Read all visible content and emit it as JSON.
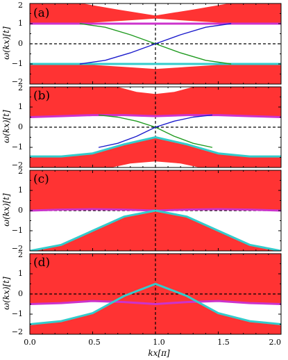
{
  "chart_data": [
    {
      "type": "area",
      "panel_label": "(a)",
      "ylabel": "ω(kx)[t]",
      "xlim": [
        0,
        2
      ],
      "ylim": [
        -2,
        2
      ],
      "yticks": [
        "2",
        "1",
        "0",
        "−1",
        "−2"
      ],
      "bands": [
        {
          "name": "",
          "color": "#ff3333",
          "x": [
            0,
            0.25,
            0.5,
            0.75,
            1.0,
            1.25,
            1.5,
            1.75,
            2.0
          ],
          "lower": [
            1.0,
            1.0,
            1.05,
            1.15,
            1.25,
            1.15,
            1.05,
            1.0,
            1.0
          ],
          "upper": [
            2,
            2,
            2,
            2,
            2,
            2,
            2,
            2,
            2
          ]
        },
        {
          "name": "",
          "color": "#ff3333",
          "x": [
            0,
            0.25,
            0.5,
            0.75,
            1.0,
            1.25,
            1.5,
            1.75,
            2.0
          ],
          "lower": [
            -2,
            -2,
            -2,
            -2,
            -2,
            -2,
            -2,
            -2,
            -2
          ],
          "upper": [
            -1.0,
            -1.0,
            -1.05,
            -1.15,
            -1.25,
            -1.15,
            -1.05,
            -1.0,
            -1.0
          ]
        }
      ],
      "white_regions": [
        {
          "x": [
            0.42,
            0.7,
            1.0,
            1.3,
            1.58
          ],
          "y": [
            2.0,
            1.7,
            1.4,
            1.7,
            2.0
          ]
        }
      ],
      "series": [
        {
          "name": "",
          "color": "#cc33cc",
          "x": [
            0,
            0.25,
            0.5,
            0.75,
            1.0,
            1.25,
            1.5,
            1.75,
            2.0
          ],
          "values": [
            1.0,
            1.0,
            1.0,
            1.0,
            1.0,
            1.0,
            1.0,
            1.0,
            1.0
          ]
        },
        {
          "name": "",
          "color": "#33cccc",
          "x": [
            0,
            0.25,
            0.5,
            0.75,
            1.0,
            1.25,
            1.5,
            1.75,
            2.0
          ],
          "values": [
            -1.0,
            -1.0,
            -1.0,
            -1.0,
            -1.0,
            -1.0,
            -1.0,
            -1.0,
            -1.0
          ]
        },
        {
          "name": "",
          "color": "#1f9a1f",
          "x": [
            0.4,
            0.6,
            0.8,
            1.0,
            1.2,
            1.4,
            1.6
          ],
          "values": [
            1.0,
            0.82,
            0.45,
            0.0,
            -0.45,
            -0.82,
            -1.0
          ]
        },
        {
          "name": "",
          "color": "#1a1acc",
          "x": [
            0.4,
            0.6,
            0.8,
            1.0,
            1.2,
            1.4,
            1.6
          ],
          "values": [
            -1.0,
            -0.82,
            -0.45,
            0.0,
            0.45,
            0.82,
            1.0
          ]
        }
      ]
    },
    {
      "type": "area",
      "panel_label": "(b)",
      "ylabel": "ω(kx)[t]",
      "xlim": [
        0,
        2
      ],
      "ylim": [
        -2,
        2
      ],
      "yticks": [
        "2",
        "1",
        "0",
        "−1",
        "−2"
      ],
      "bands": [
        {
          "name": "",
          "color": "#ff3333",
          "x": [
            0,
            0.25,
            0.5,
            0.75,
            1.0,
            1.25,
            1.5,
            1.75,
            2.0
          ],
          "lower": [
            0.5,
            0.55,
            0.6,
            0.6,
            0.55,
            0.6,
            0.6,
            0.55,
            0.5
          ],
          "upper": [
            2,
            2,
            2,
            2,
            2,
            2,
            2,
            2,
            2
          ]
        },
        {
          "name": "",
          "color": "#ff3333",
          "x": [
            0,
            0.25,
            0.5,
            0.75,
            1.0,
            1.25,
            1.5,
            1.75,
            2.0
          ],
          "lower": [
            -2,
            -2,
            -2,
            -2,
            -2,
            -2,
            -2,
            -2,
            -2
          ],
          "upper": [
            -1.45,
            -1.45,
            -1.3,
            -0.85,
            -0.5,
            -0.85,
            -1.3,
            -1.45,
            -1.45
          ]
        }
      ],
      "white_regions": [
        {
          "x": [
            0.7,
            0.85,
            1.0,
            1.15,
            1.3
          ],
          "y": [
            2.0,
            1.75,
            1.65,
            1.75,
            2.0
          ]
        },
        {
          "x": [
            0.65,
            0.8,
            1.0,
            1.2,
            1.35
          ],
          "y": [
            -2.0,
            -1.8,
            -1.7,
            -1.8,
            -2.0
          ]
        }
      ],
      "series": [
        {
          "name": "",
          "color": "#cc33cc",
          "x": [
            0,
            0.25,
            0.5,
            0.75,
            1.0,
            1.25,
            1.5,
            1.75,
            2.0
          ],
          "values": [
            0.5,
            0.55,
            0.6,
            0.6,
            0.55,
            0.6,
            0.6,
            0.55,
            0.5
          ]
        },
        {
          "name": "",
          "color": "#33cccc",
          "x": [
            0,
            0.25,
            0.5,
            0.75,
            1.0,
            1.25,
            1.5,
            1.75,
            2.0
          ],
          "values": [
            -1.45,
            -1.45,
            -1.3,
            -0.85,
            -0.5,
            -0.85,
            -1.3,
            -1.45,
            -1.45
          ]
        },
        {
          "name": "",
          "color": "#1f9a1f",
          "x": [
            0.55,
            0.7,
            0.85,
            1.0,
            1.15,
            1.3,
            1.45
          ],
          "values": [
            0.6,
            0.5,
            0.3,
            0.0,
            -0.45,
            -0.8,
            -1.0
          ]
        },
        {
          "name": "",
          "color": "#1a1acc",
          "x": [
            0.55,
            0.7,
            0.85,
            1.0,
            1.15,
            1.3,
            1.45
          ],
          "values": [
            -1.0,
            -0.8,
            -0.45,
            0.0,
            0.3,
            0.5,
            0.6
          ]
        }
      ]
    },
    {
      "type": "area",
      "panel_label": "(c)",
      "ylabel": "ω(kx)[t]",
      "xlim": [
        0,
        2
      ],
      "ylim": [
        -2,
        2
      ],
      "yticks": [
        "2",
        "1",
        "0",
        "−1",
        "−2"
      ],
      "bands": [
        {
          "name": "",
          "color": "#ff3333",
          "x": [
            0,
            0.25,
            0.5,
            0.75,
            1.0,
            1.25,
            1.5,
            1.75,
            2.0
          ],
          "lower": [
            0.0,
            0.05,
            0.07,
            0.05,
            0.0,
            0.05,
            0.07,
            0.05,
            0.0
          ],
          "upper": [
            2,
            2,
            2,
            2,
            2,
            2,
            2,
            2,
            2
          ]
        },
        {
          "name": "",
          "color": "#ff3333",
          "x": [
            0,
            0.25,
            0.5,
            0.75,
            1.0,
            1.25,
            1.5,
            1.75,
            2.0
          ],
          "lower": [
            -2,
            -2,
            -2,
            -2,
            -2,
            -2,
            -2,
            -2,
            -2
          ],
          "upper": [
            -2.0,
            -1.7,
            -1.0,
            -0.3,
            0.0,
            -0.3,
            -1.0,
            -1.7,
            -2.0
          ]
        }
      ],
      "white_regions": [],
      "series": [
        {
          "name": "",
          "color": "#cc33cc",
          "x": [
            0,
            0.25,
            0.5,
            0.75,
            1.0,
            1.25,
            1.5,
            1.75,
            2.0
          ],
          "values": [
            0.0,
            0.05,
            0.07,
            0.05,
            0.0,
            0.05,
            0.07,
            0.05,
            0.0
          ]
        },
        {
          "name": "",
          "color": "#33cccc",
          "x": [
            0,
            0.25,
            0.5,
            0.75,
            1.0,
            1.25,
            1.5,
            1.75,
            2.0
          ],
          "values": [
            -2.0,
            -1.7,
            -1.0,
            -0.3,
            0.0,
            -0.3,
            -1.0,
            -1.7,
            -2.0
          ]
        }
      ]
    },
    {
      "type": "area",
      "panel_label": "(d)",
      "ylabel": "ω(kx)[t]",
      "xlabel": "kx[π]",
      "xlim": [
        0,
        2
      ],
      "ylim": [
        -2,
        2
      ],
      "yticks": [
        "2",
        "1",
        "0",
        "−1",
        "−2"
      ],
      "xticks": [
        "0.0",
        "0.5",
        "1.0",
        "1.5",
        "2.0"
      ],
      "bands": [
        {
          "name": "",
          "color": "#ff3333",
          "x": [
            0,
            0.25,
            0.5,
            0.75,
            1.0,
            1.25,
            1.5,
            1.75,
            2.0
          ],
          "lower": [
            -0.5,
            -0.45,
            -0.35,
            -0.4,
            -0.5,
            -0.4,
            -0.35,
            -0.45,
            -0.5
          ],
          "upper": [
            2,
            2,
            2,
            2,
            2,
            2,
            2,
            2,
            2
          ]
        },
        {
          "name": "",
          "color": "#ff3333",
          "x": [
            0,
            0.25,
            0.5,
            0.75,
            1.0,
            1.25,
            1.5,
            1.75,
            2.0
          ],
          "lower": [
            -2,
            -2,
            -2,
            -2,
            -2,
            -2,
            -2,
            -2,
            -2
          ],
          "upper": [
            -1.5,
            -1.35,
            -0.95,
            -0.1,
            0.5,
            -0.1,
            -0.95,
            -1.35,
            -1.5
          ]
        }
      ],
      "white_regions": [],
      "series": [
        {
          "name": "",
          "color": "#cc33cc",
          "x": [
            0,
            0.25,
            0.5,
            0.75,
            1.0,
            1.25,
            1.5,
            1.75,
            2.0
          ],
          "values": [
            -0.5,
            -0.45,
            -0.35,
            -0.4,
            -0.5,
            -0.4,
            -0.35,
            -0.45,
            -0.5
          ]
        },
        {
          "name": "",
          "color": "#33cccc",
          "x": [
            0,
            0.25,
            0.5,
            0.75,
            1.0,
            1.25,
            1.5,
            1.75,
            2.0
          ],
          "values": [
            -1.5,
            -1.35,
            -0.95,
            -0.1,
            0.5,
            -0.1,
            -0.95,
            -1.35,
            -1.5
          ]
        }
      ]
    }
  ]
}
